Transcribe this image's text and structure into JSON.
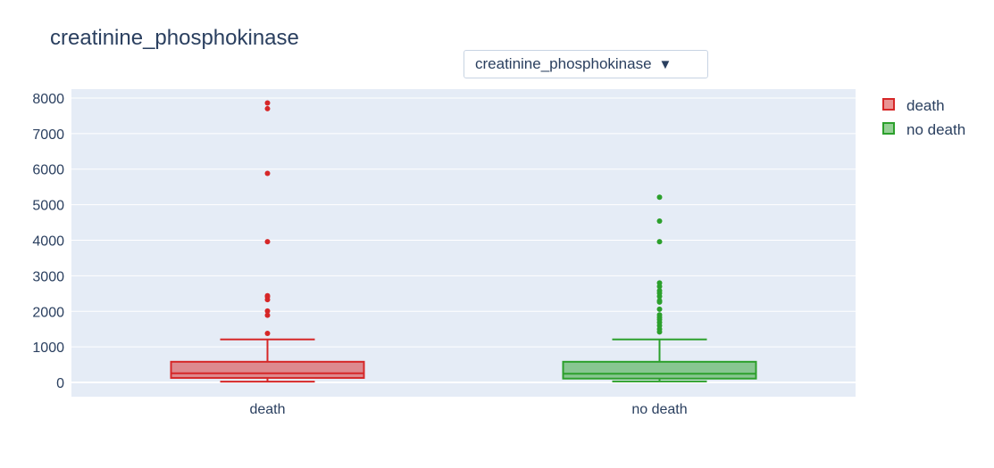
{
  "colors": {
    "plot_bg": "#e5ecf6",
    "grid": "#ffffff",
    "text": "#2a3f5f",
    "death": "#d62728",
    "no_death": "#2ca02c"
  },
  "dropdown": {
    "selected": "creatinine_phosphokinase",
    "caret": "▼"
  },
  "chart_data": {
    "type": "box",
    "title": "creatinine_phosphokinase",
    "xlabel": "",
    "ylabel": "",
    "categories": [
      "death",
      "no death"
    ],
    "ylim": [
      -400,
      8250
    ],
    "yticks": [
      0,
      1000,
      2000,
      3000,
      4000,
      5000,
      6000,
      7000,
      8000
    ],
    "grid": true,
    "legend_position": "top-right",
    "series": [
      {
        "name": "death",
        "color": "#d62728",
        "box": {
          "lower_whisker": 23,
          "q1": 128,
          "median": 259,
          "q3": 582,
          "upper_whisker": 1211
        },
        "outliers": [
          1380,
          1890,
          2010,
          2330,
          2410,
          2440,
          3960,
          5880,
          7700,
          7860
        ]
      },
      {
        "name": "no death",
        "color": "#2ca02c",
        "box": {
          "lower_whisker": 30,
          "q1": 109,
          "median": 245,
          "q3": 582,
          "upper_whisker": 1211
        },
        "outliers": [
          1420,
          1500,
          1600,
          1690,
          1770,
          1830,
          1900,
          2060,
          2260,
          2300,
          2420,
          2510,
          2580,
          2700,
          2800,
          3960,
          4540,
          5210
        ]
      }
    ]
  }
}
